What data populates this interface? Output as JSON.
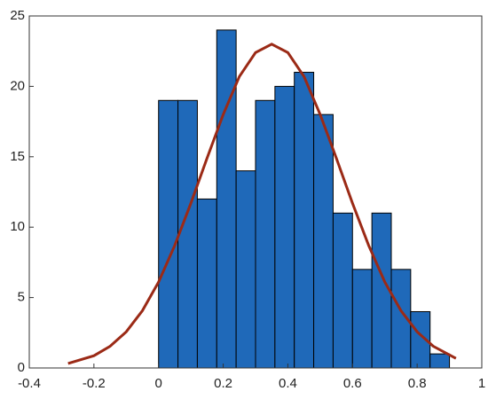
{
  "chart_data": {
    "type": "histogram",
    "bins": [
      0,
      0.06,
      0.12,
      0.18,
      0.24,
      0.3,
      0.36,
      0.42,
      0.48,
      0.54,
      0.6,
      0.66,
      0.72,
      0.78,
      0.84,
      0.9
    ],
    "values": [
      19,
      19,
      12,
      24,
      14,
      19,
      20,
      21,
      18,
      11,
      7,
      11,
      7,
      4,
      1
    ],
    "color": "#1f69b9",
    "fit": {
      "color": "#9b2a16",
      "x": [
        -0.28,
        -0.2,
        -0.15,
        -0.1,
        -0.05,
        0,
        0.05,
        0.1,
        0.15,
        0.2,
        0.25,
        0.3,
        0.35,
        0.4,
        0.45,
        0.5,
        0.55,
        0.6,
        0.65,
        0.7,
        0.75,
        0.8,
        0.85,
        0.92
      ],
      "values": [
        0.32,
        0.87,
        1.54,
        2.57,
        4.07,
        6.1,
        8.7,
        11.7,
        14.9,
        18.0,
        20.7,
        22.4,
        23,
        22.4,
        20.7,
        18.0,
        14.9,
        11.7,
        8.7,
        6.1,
        4.07,
        2.57,
        1.54,
        0.68
      ]
    },
    "xlim": [
      -0.4,
      1
    ],
    "xticks": [
      -0.4,
      -0.2,
      0,
      0.2,
      0.4,
      0.6,
      0.8,
      1
    ],
    "ylim": [
      0,
      25
    ],
    "yticks": [
      0,
      5,
      10,
      15,
      20,
      25
    ],
    "grid": false
  }
}
